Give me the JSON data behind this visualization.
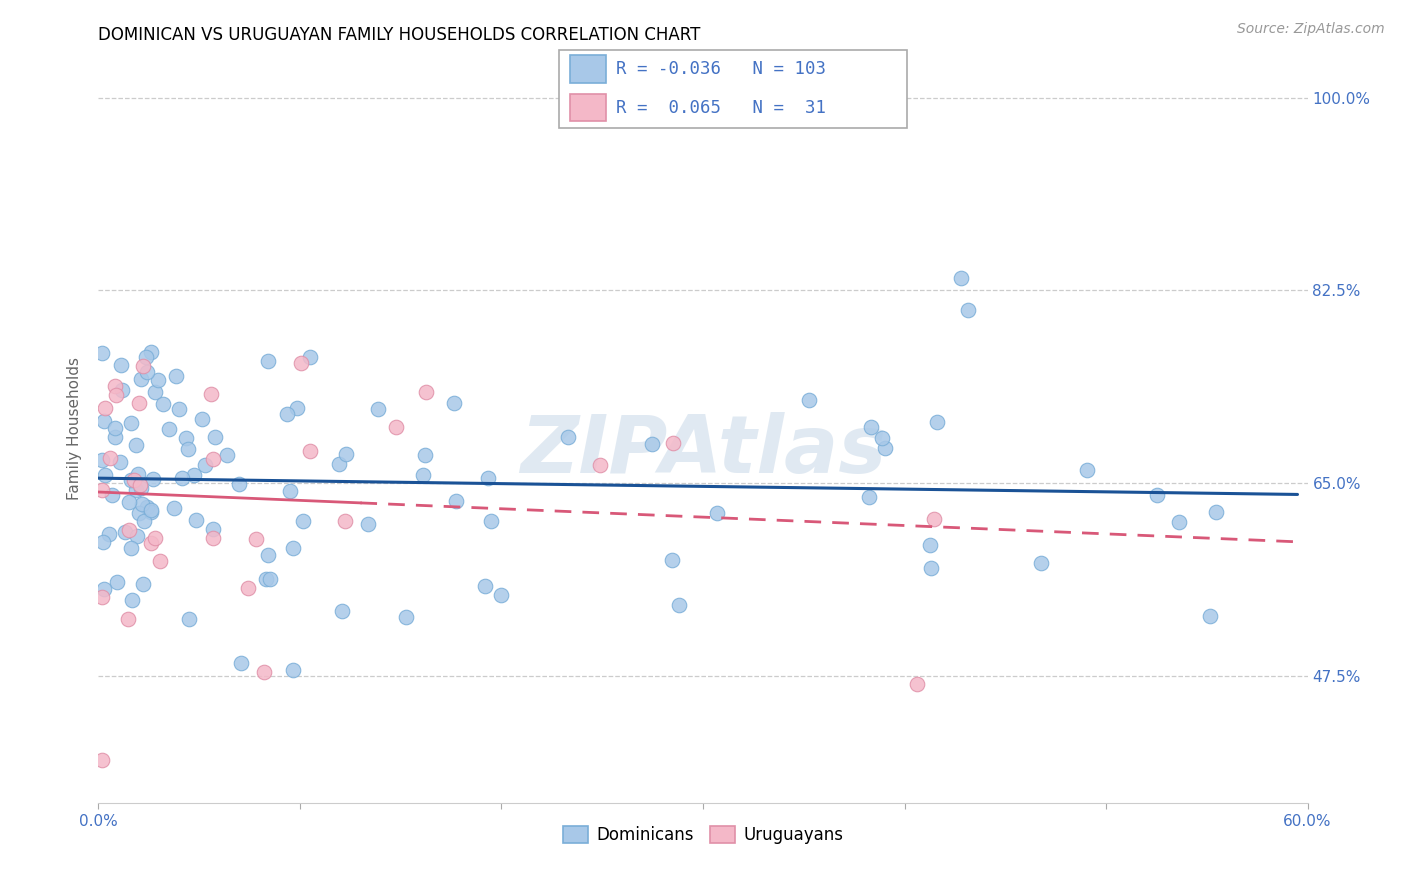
{
  "title": "DOMINICAN VS URUGUAYAN FAMILY HOUSEHOLDS CORRELATION CHART",
  "source": "Source: ZipAtlas.com",
  "ylabel": "Family Households",
  "ytick_vals": [
    0.475,
    0.65,
    0.825,
    1.0
  ],
  "ytick_labels": [
    "47.5%",
    "65.0%",
    "82.5%",
    "100.0%"
  ],
  "xlim": [
    0.0,
    0.6
  ],
  "ylim": [
    0.36,
    1.04
  ],
  "watermark": "ZIPAtlas",
  "legend_text_dom": "R = -0.036   N = 103",
  "legend_text_uru": "R =  0.065   N =  31",
  "dom_color": "#a8c8e8",
  "dom_edge_color": "#7aaed8",
  "uru_color": "#f4b8c8",
  "uru_edge_color": "#e090a8",
  "trend_dom_color": "#1a5296",
  "trend_uru_color": "#d85878",
  "legend_color": "#4472c4",
  "axis_color": "#4472c4",
  "grid_color": "#cccccc",
  "title_fontsize": 12,
  "source_fontsize": 10,
  "tick_fontsize": 11,
  "ylabel_fontsize": 11,
  "dot_size": 110,
  "dom_trend_start": 0.0,
  "dom_trend_end": 0.595,
  "uru_trend_solid_end": 0.13,
  "uru_trend_dash_end": 0.595
}
